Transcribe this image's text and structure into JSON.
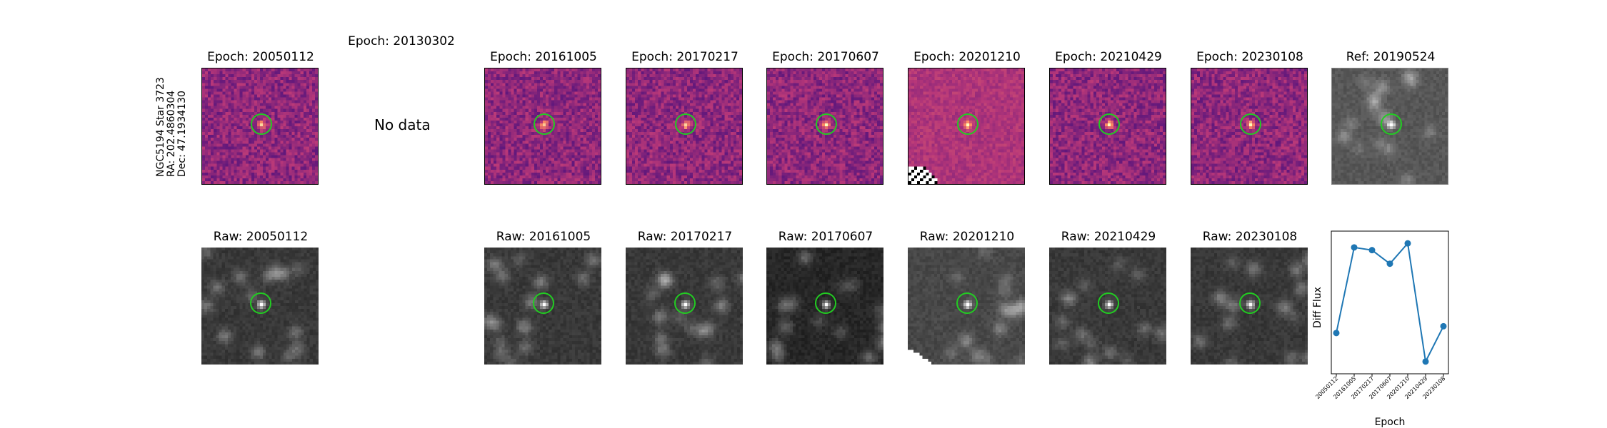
{
  "target": {
    "line1": "NGC5194 Star 3723",
    "line2": "RA: 202.4860304",
    "line3": "Dec: 47.1934130"
  },
  "no_data_epoch_title": "Epoch: 20130302",
  "no_data_text": "No data",
  "top_row": [
    {
      "title": "Epoch: 20050112",
      "kind": "diff",
      "seed": 11
    },
    {
      "title": "Epoch: 20161005",
      "kind": "diff",
      "seed": 23
    },
    {
      "title": "Epoch: 20170217",
      "kind": "diff",
      "seed": 37
    },
    {
      "title": "Epoch: 20170607",
      "kind": "diff",
      "seed": 41
    },
    {
      "title": "Epoch: 20201210",
      "kind": "diffpale",
      "seed": 53
    },
    {
      "title": "Epoch: 20210429",
      "kind": "diff",
      "seed": 67
    },
    {
      "title": "Epoch: 20230108",
      "kind": "diff",
      "seed": 79
    },
    {
      "title": "Ref: 20190524",
      "kind": "ref",
      "seed": 83
    }
  ],
  "bottom_row": [
    {
      "title": "Raw: 20050112",
      "kind": "raw",
      "seed": 97
    },
    {
      "title": "Raw: 20161005",
      "kind": "raw",
      "seed": 101
    },
    {
      "title": "Raw: 20170217",
      "kind": "raw",
      "seed": 103
    },
    {
      "title": "Raw: 20170607",
      "kind": "rawdark",
      "seed": 107
    },
    {
      "title": "Raw: 20201210",
      "kind": "rawcut",
      "seed": 109
    },
    {
      "title": "Raw: 20210429",
      "kind": "raw",
      "seed": 113
    },
    {
      "title": "Raw: 20230108",
      "kind": "raw",
      "seed": 127
    }
  ],
  "colors": {
    "ring": "#22cc22",
    "line": "#1f77b4"
  },
  "chart_data": {
    "type": "line",
    "x": [
      "20050112",
      "20161005",
      "20170217",
      "20170607",
      "20201210",
      "20210429",
      "20230108"
    ],
    "series": [
      {
        "values": [
          0.3,
          0.93,
          0.91,
          0.81,
          0.96,
          0.09,
          0.35
        ]
      }
    ],
    "xlabel": "Epoch",
    "ylabel": "Diff Flux",
    "yticks": false,
    "ylim": [
      0,
      1.05
    ]
  }
}
